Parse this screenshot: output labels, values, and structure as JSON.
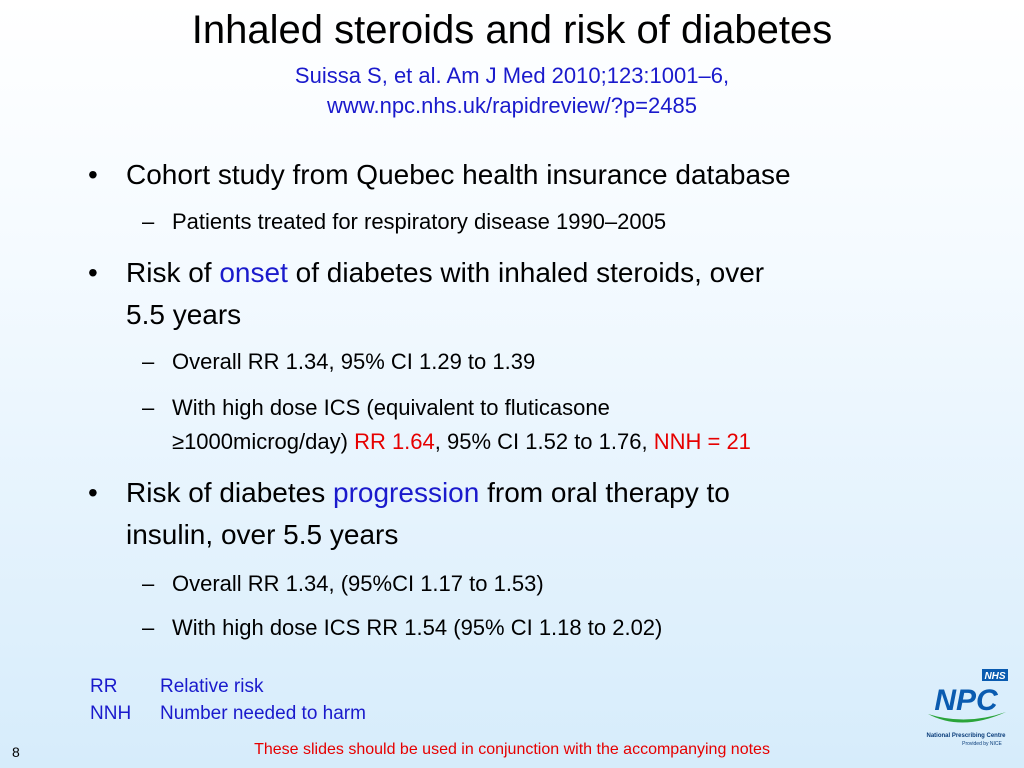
{
  "slide": {
    "title": "Inhaled steroids and risk of diabetes",
    "subtitle_line1": "Suissa S, et al. Am J Med 2010;123:1001–6,",
    "subtitle_line2": "www.npc.nhs.uk/rapidreview/?p=2485",
    "bullets": {
      "b1": "Cohort study from Quebec health insurance database",
      "b1_sub1": "Patients treated for respiratory disease 1990–2005",
      "b2_pre": "Risk of ",
      "b2_emph": "onset",
      "b2_line1_post": " of diabetes with inhaled steroids, over",
      "b2_line2": "5.5 years",
      "b2_sub1": "Overall RR 1.34, 95% CI 1.29 to 1.39",
      "b2_sub2_line1": "With high dose ICS (equivalent to fluticasone",
      "b2_sub2_line2_pre": "≥1000microg/day) ",
      "b2_sub2_rr": "RR 1.64",
      "b2_sub2_mid": ", 95% CI 1.52 to 1.76, ",
      "b2_sub2_nnh": "NNH = 21",
      "b3_pre": "Risk of diabetes ",
      "b3_emph": "progression",
      "b3_line1_post": " from oral therapy to",
      "b3_line2": "insulin, over 5.5 years",
      "b3_sub1": "Overall RR 1.34, (95%CI 1.17 to 1.53)",
      "b3_sub2": "With high dose ICS RR 1.54 (95% CI 1.18 to 2.02)",
      "bullet_glyph": "•",
      "dash_glyph": "–"
    },
    "abbreviations": [
      {
        "key": "RR",
        "value": "Relative risk"
      },
      {
        "key": "NNH",
        "value": "Number needed to harm"
      }
    ],
    "footer_note": "These slides should be used in conjunction with the accompanying notes",
    "slide_number": "8",
    "logo": {
      "nhs": "NHS",
      "npc": "NPC",
      "tagline1": "National Prescribing Centre",
      "tagline2": "Provided by NICE"
    },
    "colors": {
      "accent_blue": "#1a1acc",
      "accent_red": "#e60000",
      "logo_blue": "#0a5bb0",
      "logo_green": "#2aa43a"
    }
  }
}
